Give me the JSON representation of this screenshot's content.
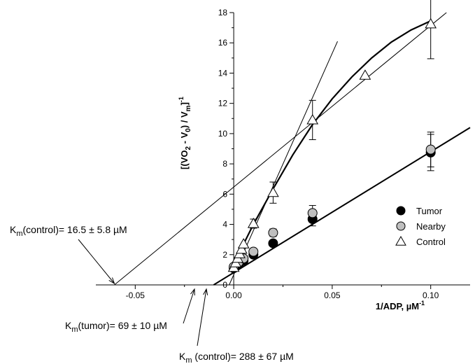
{
  "chart_data": {
    "type": "scatter",
    "title": "",
    "xlabel": "1/ADP, µM⁻¹",
    "xlabel_main": "1/ADP, µM",
    "xlabel_sup": "-1",
    "ylabel": "[(VO2 - V0) / Vm]⁻¹",
    "xlim": [
      -0.07,
      0.12
    ],
    "ylim": [
      0,
      18
    ],
    "x_ticks": [
      -0.05,
      0.0,
      0.05,
      0.1
    ],
    "x_tick_labels": [
      "-0.05",
      "0.00",
      "0.05",
      "0.10"
    ],
    "y_ticks": [
      0,
      2,
      4,
      6,
      8,
      10,
      12,
      14,
      16,
      18
    ],
    "y_tick_labels": [
      "0",
      "2",
      "4",
      "6",
      "8",
      "10",
      "12",
      "14",
      "16",
      "18"
    ],
    "grid": false,
    "legend_position": "right",
    "series": [
      {
        "name": "Tumor",
        "marker": "filled-circle",
        "color": "#000000",
        "x": [
          0.0,
          0.0025,
          0.005,
          0.01,
          0.02,
          0.04,
          0.1
        ],
        "y": [
          1.1,
          1.35,
          1.6,
          2.0,
          2.75,
          4.35,
          8.75
        ],
        "err": [
          0,
          0,
          0,
          0,
          0.15,
          0.45,
          1.2
        ]
      },
      {
        "name": "Nearby",
        "marker": "gray-circle",
        "color": "#bfbfbf",
        "x": [
          0.0,
          0.0025,
          0.005,
          0.01,
          0.02,
          0.04,
          0.1
        ],
        "y": [
          1.2,
          1.5,
          1.75,
          2.2,
          3.45,
          4.75,
          8.95
        ],
        "err": [
          0,
          0,
          0,
          0,
          0.25,
          0.5,
          1.15
        ]
      },
      {
        "name": "Control",
        "marker": "open-triangle",
        "color": "#ffffff",
        "x": [
          0.0,
          0.001,
          0.002,
          0.003,
          0.004,
          0.005,
          0.01,
          0.02,
          0.04,
          0.0667,
          0.1
        ],
        "y": [
          1.15,
          1.45,
          1.75,
          2.05,
          2.35,
          2.7,
          4.05,
          6.1,
          10.9,
          13.85,
          17.25
        ],
        "err": [
          0,
          0,
          0,
          0,
          0,
          0,
          0.3,
          0.7,
          1.3,
          0,
          2.3
        ]
      }
    ],
    "fit_lines": [
      {
        "x": [
          -0.0102,
          0.12
        ],
        "y": [
          0,
          10.4
        ]
      },
      {
        "x": [
          -0.0023,
          0.0527
        ],
        "y": [
          0,
          16.1
        ]
      },
      {
        "x": [
          -0.0606,
          0.108
        ],
        "y": [
          0,
          18.0
        ]
      }
    ],
    "fit_curve_control": {
      "x": [
        0.0,
        0.005,
        0.01,
        0.02,
        0.03,
        0.04,
        0.05,
        0.06,
        0.07,
        0.08,
        0.09,
        0.1
      ],
      "y": [
        1.15,
        2.7,
        4.0,
        6.35,
        8.6,
        10.6,
        12.3,
        13.75,
        15.0,
        16.05,
        16.85,
        17.45
      ]
    },
    "annotations": [
      {
        "key": "km_control_intercept",
        "main": "K",
        "sub": "m",
        "text": "(control)= 16.5 ± 5.8 µM",
        "x": -0.0606
      },
      {
        "key": "km_tumor",
        "main": "K",
        "sub": "m",
        "text": "(tumor)= 69 ± 10 µM",
        "x": -0.0145
      },
      {
        "key": "km_control_slope",
        "main": "K",
        "sub": "m",
        "text": " (control)= 288 ± 67 µM",
        "x": -0.0035
      }
    ]
  }
}
